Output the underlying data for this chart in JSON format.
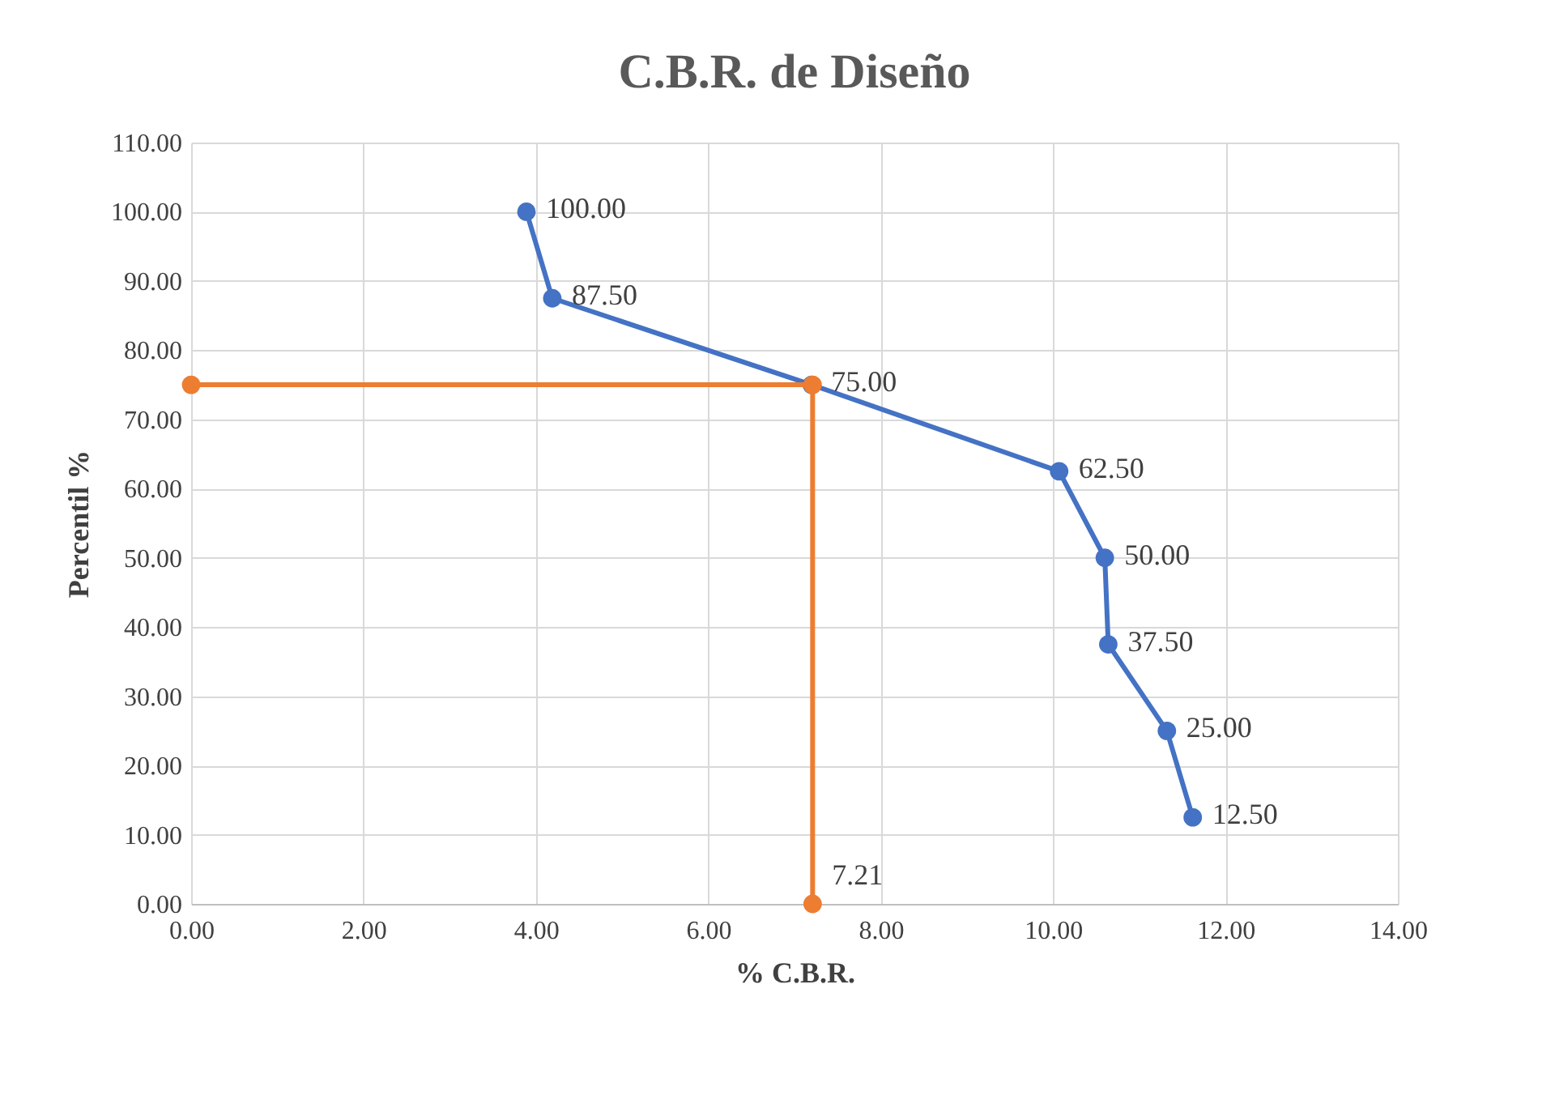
{
  "chart_data": {
    "type": "line",
    "title": "C.B.R. de Diseño",
    "xlabel": "% C.B.R.",
    "ylabel": "Percentil %",
    "xlim": [
      0,
      14
    ],
    "ylim": [
      0,
      110
    ],
    "xticks": [
      {
        "value": 0,
        "label": "0.00"
      },
      {
        "value": 2,
        "label": "2.00"
      },
      {
        "value": 4,
        "label": "4.00"
      },
      {
        "value": 6,
        "label": "6.00"
      },
      {
        "value": 8,
        "label": "8.00"
      },
      {
        "value": 10,
        "label": "10.00"
      },
      {
        "value": 12,
        "label": "12.00"
      },
      {
        "value": 14,
        "label": "14.00"
      }
    ],
    "yticks": [
      {
        "value": 0,
        "label": "0.00"
      },
      {
        "value": 10,
        "label": "10.00"
      },
      {
        "value": 20,
        "label": "20.00"
      },
      {
        "value": 30,
        "label": "30.00"
      },
      {
        "value": 40,
        "label": "40.00"
      },
      {
        "value": 50,
        "label": "50.00"
      },
      {
        "value": 60,
        "label": "60.00"
      },
      {
        "value": 70,
        "label": "70.00"
      },
      {
        "value": 80,
        "label": "80.00"
      },
      {
        "value": 90,
        "label": "90.00"
      },
      {
        "value": 100,
        "label": "100.00"
      },
      {
        "value": 110,
        "label": "110.00"
      }
    ],
    "grid": true,
    "marker": "circle",
    "annotations": [
      {
        "text": "7.21",
        "x": 7.21,
        "y": 0
      }
    ],
    "line_style": "solid",
    "series": [
      {
        "color": "#4472c4",
        "x": [
          3.89,
          4.19,
          7.2,
          10.07,
          10.6,
          10.64,
          11.32,
          11.62
        ],
        "values": [
          100,
          87.5,
          75,
          62.5,
          50,
          37.5,
          25,
          12.5
        ],
        "value_labels": [
          "100.00",
          "87.50",
          "75.00",
          "62.50",
          "50.00",
          "37.50",
          "25.00",
          "12.50"
        ]
      },
      {
        "color": "#ed7d31",
        "x": [
          0,
          7.21,
          7.21
        ],
        "values": [
          75,
          75,
          0
        ]
      }
    ]
  }
}
